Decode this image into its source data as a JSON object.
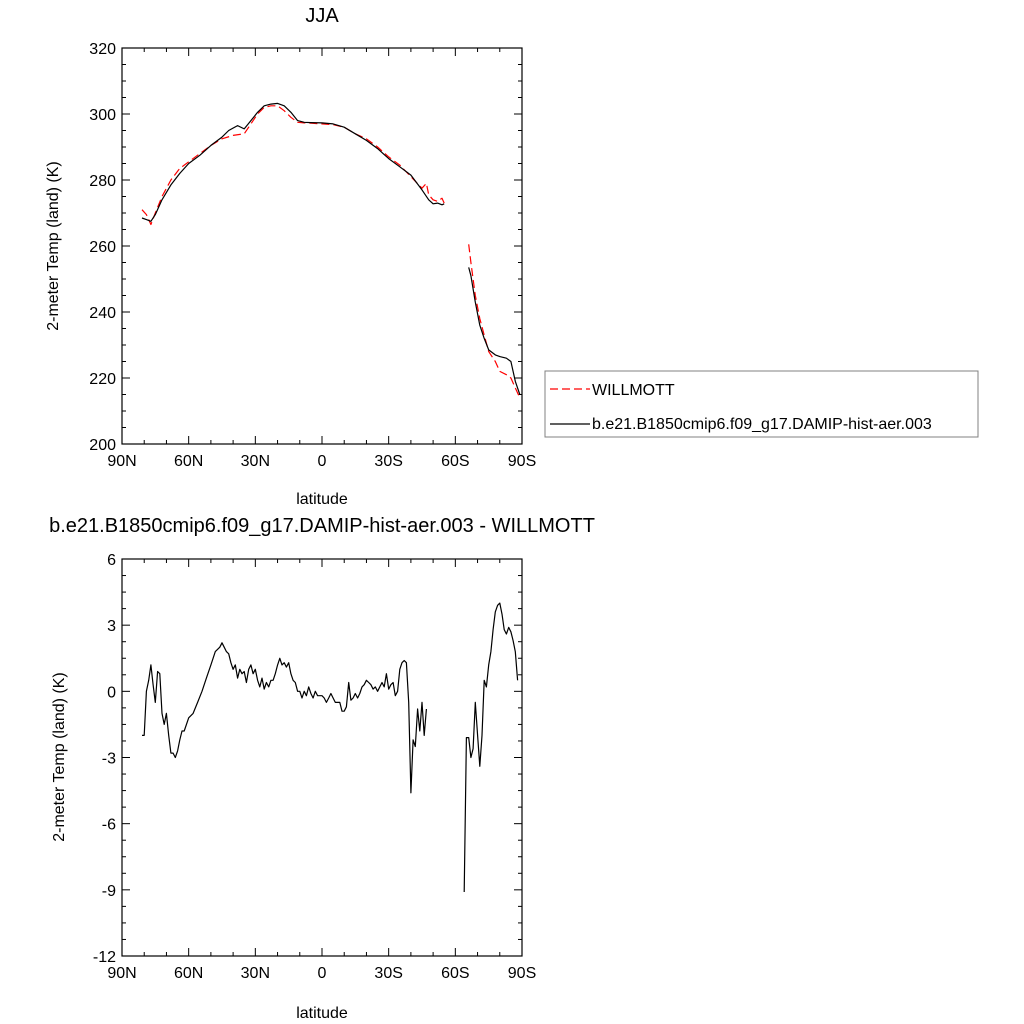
{
  "chart_data": [
    {
      "type": "line",
      "title": "JJA",
      "xlabel": "latitude",
      "ylabel": "2-meter Temp (land) (K)",
      "xlim": [
        90,
        -90
      ],
      "ylim": [
        200,
        320
      ],
      "xticks": [
        90,
        60,
        30,
        0,
        -30,
        -60,
        -90
      ],
      "xtick_labels": [
        "90N",
        "60N",
        "30N",
        "0",
        "30S",
        "60S",
        "90S"
      ],
      "yticks": [
        200,
        220,
        240,
        260,
        280,
        300,
        320
      ],
      "ytick_labels": [
        "200",
        "220",
        "240",
        "260",
        "280",
        "300",
        "320"
      ],
      "legend_placement": "right",
      "series": [
        {
          "name": "WILLMOTT",
          "color": "#ff0000",
          "dash": "dashed",
          "points": [
            [
              81,
              271
            ],
            [
              79,
              269.5
            ],
            [
              77,
              266.5
            ],
            [
              75,
              270
            ],
            [
              72,
              275
            ],
            [
              68,
              280
            ],
            [
              64,
              283.5
            ],
            [
              60,
              285.5
            ],
            [
              55,
              288
            ],
            [
              50,
              290.5
            ],
            [
              45,
              292.5
            ],
            [
              40,
              293.5
            ],
            [
              35,
              294
            ],
            [
              32,
              297
            ],
            [
              29,
              300
            ],
            [
              26,
              302
            ],
            [
              23,
              302.5
            ],
            [
              20,
              302.5
            ],
            [
              17,
              301
            ],
            [
              14,
              299
            ],
            [
              11,
              297.5
            ],
            [
              8,
              297.3
            ],
            [
              5,
              297.2
            ],
            [
              0,
              297
            ],
            [
              -5,
              296.8
            ],
            [
              -10,
              296
            ],
            [
              -15,
              294
            ],
            [
              -20,
              292.5
            ],
            [
              -25,
              290
            ],
            [
              -30,
              287
            ],
            [
              -35,
              284.5
            ],
            [
              -40,
              281
            ],
            [
              -45,
              277.5
            ],
            [
              -47,
              279
            ],
            [
              -48,
              275.5
            ],
            [
              -50,
              274
            ],
            [
              -52,
              273.5
            ],
            [
              -54,
              274.5
            ],
            [
              -55,
              273
            ],
            null,
            [
              -66,
              260.5
            ],
            [
              -67,
              255
            ],
            [
              -69,
              245
            ],
            [
              -71,
              238
            ],
            [
              -73,
              233
            ],
            [
              -75,
              228
            ],
            [
              -78,
              225
            ],
            [
              -80,
              222
            ],
            [
              -83,
              221
            ],
            [
              -85,
              220
            ],
            [
              -87,
              217
            ],
            [
              -89,
              214
            ]
          ]
        },
        {
          "name": "b.e21.B1850cmip6.f09_g17.DAMIP-hist-aer.003",
          "color": "#000000",
          "dash": "solid",
          "points": [
            [
              81,
              268.5
            ],
            [
              79,
              268
            ],
            [
              77,
              267.5
            ],
            [
              75,
              269.5
            ],
            [
              72,
              274
            ],
            [
              68,
              278.5
            ],
            [
              64,
              282
            ],
            [
              60,
              285
            ],
            [
              55,
              287.5
            ],
            [
              50,
              290.5
            ],
            [
              45,
              293
            ],
            [
              42,
              295
            ],
            [
              38,
              296.5
            ],
            [
              35,
              295.5
            ],
            [
              32,
              298
            ],
            [
              29,
              300.5
            ],
            [
              26,
              302.5
            ],
            [
              23,
              303
            ],
            [
              20,
              303.2
            ],
            [
              17,
              302.5
            ],
            [
              14,
              300.5
            ],
            [
              11,
              298
            ],
            [
              8,
              297.5
            ],
            [
              5,
              297.4
            ],
            [
              0,
              297.3
            ],
            [
              -5,
              297
            ],
            [
              -10,
              296
            ],
            [
              -15,
              294
            ],
            [
              -20,
              292
            ],
            [
              -25,
              289.5
            ],
            [
              -30,
              286.5
            ],
            [
              -35,
              284
            ],
            [
              -40,
              281.5
            ],
            [
              -45,
              277
            ],
            [
              -48,
              274
            ],
            [
              -50,
              272.8
            ],
            [
              -52,
              273
            ],
            [
              -54,
              272.5
            ],
            [
              -55,
              272.8
            ],
            null,
            [
              -66,
              253.5
            ],
            [
              -67,
              251
            ],
            [
              -69,
              243
            ],
            [
              -71,
              236
            ],
            [
              -73,
              232
            ],
            [
              -75,
              228.5
            ],
            [
              -78,
              227
            ],
            [
              -80,
              226.5
            ],
            [
              -83,
              226
            ],
            [
              -85,
              225
            ],
            [
              -87,
              219
            ],
            [
              -89,
              215
            ]
          ]
        }
      ]
    },
    {
      "type": "line",
      "title": "b.e21.B1850cmip6.f09_g17.DAMIP-hist-aer.003 - WILLMOTT",
      "xlabel": "latitude",
      "ylabel": "2-meter Temp (land) (K)",
      "xlim": [
        90,
        -90
      ],
      "ylim": [
        -12,
        6
      ],
      "xticks": [
        90,
        60,
        30,
        0,
        -30,
        -60,
        -90
      ],
      "xtick_labels": [
        "90N",
        "60N",
        "30N",
        "0",
        "30S",
        "60S",
        "90S"
      ],
      "yticks": [
        -12,
        -9,
        -6,
        -3,
        0,
        3,
        6
      ],
      "ytick_labels": [
        "-12",
        "-9",
        "-6",
        "-3",
        "0",
        "3",
        "6"
      ],
      "series": [
        {
          "color": "#000000",
          "dash": "solid",
          "points": [
            [
              81,
              -2
            ],
            [
              80,
              -2
            ],
            [
              79,
              0
            ],
            [
              78,
              0.5
            ],
            [
              77,
              1.2
            ],
            [
              76,
              0.3
            ],
            [
              75,
              -0.5
            ],
            [
              74,
              0.9
            ],
            [
              73,
              0.8
            ],
            [
              72,
              -1
            ],
            [
              71,
              -1.5
            ],
            [
              70,
              -1
            ],
            [
              69,
              -2
            ],
            [
              68,
              -2.8
            ],
            [
              67,
              -2.8
            ],
            [
              66,
              -3
            ],
            [
              65,
              -2.7
            ],
            [
              64,
              -2.2
            ],
            [
              63,
              -1.8
            ],
            [
              62,
              -1.8
            ],
            [
              60,
              -1.2
            ],
            [
              58,
              -1
            ],
            [
              56,
              -0.5
            ],
            [
              54,
              0
            ],
            [
              52,
              0.6
            ],
            [
              50,
              1.2
            ],
            [
              48,
              1.8
            ],
            [
              46,
              2.0
            ],
            [
              45,
              2.2
            ],
            [
              44,
              2.0
            ],
            [
              43,
              1.8
            ],
            [
              42,
              1.7
            ],
            [
              41,
              1.3
            ],
            [
              40,
              1.0
            ],
            [
              39,
              1.2
            ],
            [
              38,
              0.6
            ],
            [
              37,
              1.0
            ],
            [
              36,
              0.8
            ],
            [
              35,
              0.9
            ],
            [
              34,
              0.4
            ],
            [
              33,
              1.0
            ],
            [
              32,
              1.2
            ],
            [
              31,
              0.8
            ],
            [
              30,
              1.0
            ],
            [
              29,
              0.5
            ],
            [
              28,
              0.2
            ],
            [
              27,
              0.6
            ],
            [
              26,
              0.1
            ],
            [
              25,
              0.4
            ],
            [
              24,
              0.2
            ],
            [
              23,
              0.5
            ],
            [
              22,
              0.5
            ],
            [
              21,
              0.8
            ],
            [
              20,
              1.2
            ],
            [
              19,
              1.5
            ],
            [
              18,
              1.2
            ],
            [
              17,
              1.3
            ],
            [
              16,
              1.1
            ],
            [
              15,
              1.3
            ],
            [
              14,
              0.8
            ],
            [
              13,
              0.5
            ],
            [
              12,
              0.4
            ],
            [
              11,
              0
            ],
            [
              10,
              0
            ],
            [
              9,
              -0.3
            ],
            [
              8,
              0
            ],
            [
              7,
              -0.2
            ],
            [
              6,
              0.2
            ],
            [
              5,
              -0.1
            ],
            [
              4,
              -0.3
            ],
            [
              3,
              0
            ],
            [
              2,
              -0.2
            ],
            [
              0,
              -0.2
            ],
            [
              -1,
              -0.3
            ],
            [
              -2,
              -0.5
            ],
            [
              -3,
              -0.3
            ],
            [
              -4,
              -0.1
            ],
            [
              -5,
              -0.3
            ],
            [
              -6,
              -0.5
            ],
            [
              -7,
              -0.5
            ],
            [
              -8,
              -0.5
            ],
            [
              -9,
              -0.9
            ],
            [
              -10,
              -0.9
            ],
            [
              -11,
              -0.7
            ],
            [
              -12,
              0.4
            ],
            [
              -13,
              -0.4
            ],
            [
              -14,
              -0.3
            ],
            [
              -15,
              -0.1
            ],
            [
              -16,
              -0.3
            ],
            [
              -17,
              -0.1
            ],
            [
              -18,
              0.2
            ],
            [
              -19,
              0.3
            ],
            [
              -20,
              0.5
            ],
            [
              -21,
              0.4
            ],
            [
              -22,
              0.3
            ],
            [
              -23,
              0.1
            ],
            [
              -24,
              0.2
            ],
            [
              -25,
              0
            ],
            [
              -26,
              0.2
            ],
            [
              -27,
              0.4
            ],
            [
              -28,
              0.2
            ],
            [
              -29,
              0.8
            ],
            [
              -30,
              0.1
            ],
            [
              -31,
              0.3
            ],
            [
              -32,
              0.4
            ],
            [
              -33,
              -0.2
            ],
            [
              -34,
              0
            ],
            [
              -35,
              1.0
            ],
            [
              -36,
              1.3
            ],
            [
              -37,
              1.4
            ],
            [
              -38,
              1.3
            ],
            [
              -39,
              -0.5
            ],
            [
              -40,
              -4.6
            ],
            [
              -41,
              -2.2
            ],
            [
              -42,
              -2.5
            ],
            [
              -43,
              -0.8
            ],
            [
              -44,
              -1.8
            ],
            [
              -45,
              -0.5
            ],
            [
              -46,
              -2.0
            ],
            [
              -47,
              -0.8
            ],
            null,
            [
              -64,
              -9.1
            ],
            [
              -65,
              -2.1
            ],
            [
              -66,
              -2.1
            ],
            [
              -67,
              -3.0
            ],
            [
              -68,
              -2.6
            ],
            [
              -69,
              -0.5
            ],
            [
              -70,
              -2.0
            ],
            [
              -71,
              -3.4
            ],
            [
              -72,
              -2.0
            ],
            [
              -73,
              0.5
            ],
            [
              -74,
              0.2
            ],
            [
              -75,
              1.2
            ],
            [
              -76,
              1.8
            ],
            [
              -77,
              2.8
            ],
            [
              -78,
              3.6
            ],
            [
              -79,
              3.9
            ],
            [
              -80,
              4.0
            ],
            [
              -81,
              3.5
            ],
            [
              -82,
              2.8
            ],
            [
              -83,
              2.6
            ],
            [
              -84,
              2.9
            ],
            [
              -85,
              2.7
            ],
            [
              -86,
              2.3
            ],
            [
              -87,
              1.8
            ],
            [
              -88,
              0.5
            ]
          ]
        }
      ]
    }
  ]
}
